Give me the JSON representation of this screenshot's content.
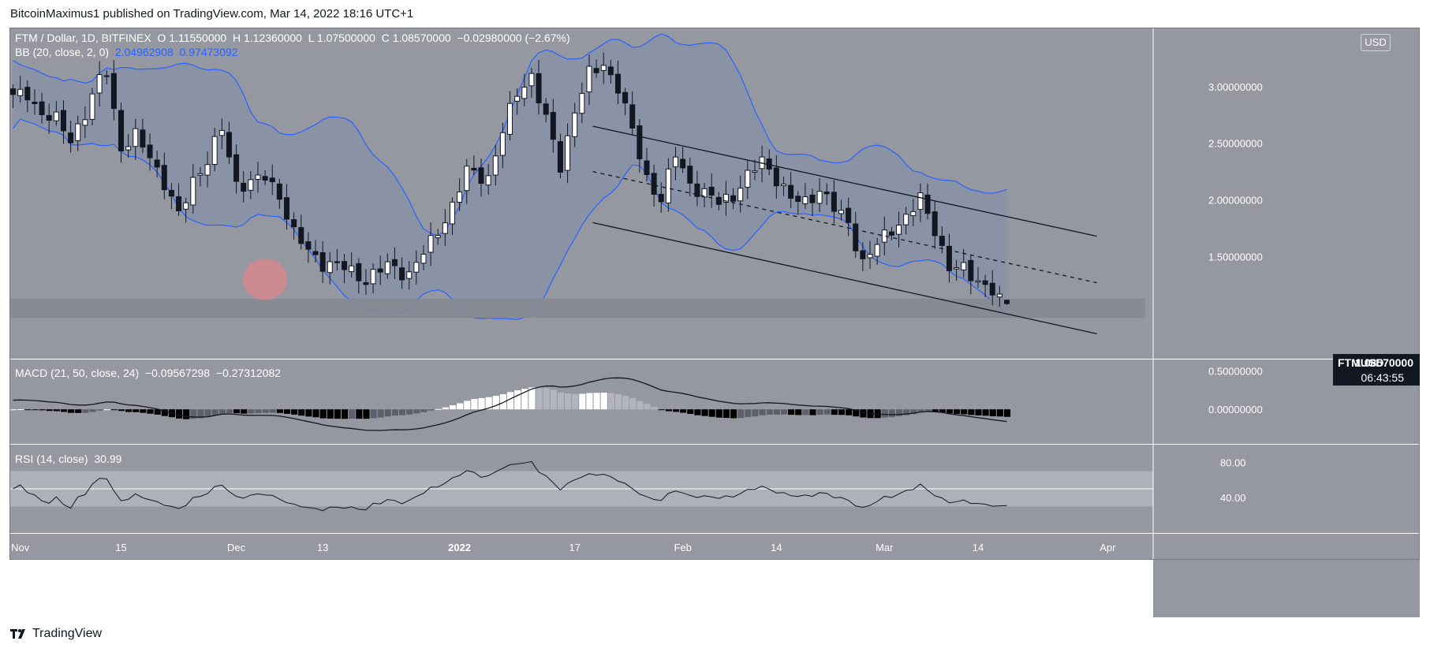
{
  "header": {
    "published": "BitcoinMaximus1 published on TradingView.com, Mar 14, 2022 18:16 UTC+1"
  },
  "legend": {
    "symbol": "FTM / Dollar, 1D, BITFINEX",
    "o_label": "O",
    "o": "1.11550000",
    "h_label": "H",
    "h": "1.12360000",
    "l_label": "L",
    "l": "1.07500000",
    "c_label": "C",
    "c": "1.08570000",
    "change": "−0.02980000 (−2.67%)",
    "bb_label": "BB (20, close, 2, 0)",
    "bb_upper": "2.04962908",
    "bb_lower": "0.97473092",
    "macd_label": "MACD (21, 50, close, 24)",
    "macd_v1": "−0.09567298",
    "macd_v2": "−0.27312082",
    "rsi_label": "RSI (14, close)",
    "rsi_v": "30.99"
  },
  "currency_badge": "USD",
  "price_tag": {
    "symbol": "FTMUSD",
    "price": "1.08570000",
    "countdown": "06:43:55"
  },
  "footer": {
    "brand": "TradingView"
  },
  "colors": {
    "pane_bg": "#9598a1",
    "band_fill": "#8592a6",
    "band_line": "#2962ff",
    "bull": "#ffffff",
    "bear": "#131722",
    "macd_line": "#131722",
    "hist_strong": "#000000",
    "hist_weak": "#5d606b",
    "hist_pos": "#ffffff",
    "rsi_band": "#b2b5be",
    "support": "#868993",
    "highlight": "#d08a8e"
  },
  "chart_data": {
    "type": "candlestick",
    "title": "FTM / Dollar, 1D, BITFINEX",
    "x_ticks": [
      "Nov",
      "15",
      "Dec",
      "13",
      "2022",
      "17",
      "Feb",
      "14",
      "Mar",
      "14",
      "Apr"
    ],
    "y_ticks": [
      "3.00000000",
      "2.50000000",
      "2.00000000",
      "1.50000000"
    ],
    "ylim": [
      0.6,
      3.52
    ],
    "x_range_days": [
      "2021-10-31",
      "2022-04-09"
    ],
    "close_anchors": [
      [
        0,
        2.9
      ],
      [
        2,
        2.95
      ],
      [
        4,
        2.75
      ],
      [
        6,
        2.7
      ],
      [
        8,
        2.55
      ],
      [
        10,
        2.75
      ],
      [
        12,
        3.05
      ],
      [
        13,
        3.15
      ],
      [
        15,
        2.45
      ],
      [
        17,
        2.55
      ],
      [
        19,
        2.4
      ],
      [
        21,
        2.15
      ],
      [
        23,
        1.85
      ],
      [
        25,
        2.18
      ],
      [
        27,
        2.35
      ],
      [
        29,
        2.62
      ],
      [
        31,
        2.15
      ],
      [
        33,
        2.15
      ],
      [
        35,
        2.2
      ],
      [
        37,
        2.05
      ],
      [
        39,
        1.7
      ],
      [
        41,
        1.55
      ],
      [
        43,
        1.45
      ],
      [
        46,
        1.4
      ],
      [
        49,
        1.3
      ],
      [
        52,
        1.42
      ],
      [
        55,
        1.35
      ],
      [
        58,
        1.62
      ],
      [
        61,
        1.95
      ],
      [
        63,
        2.25
      ],
      [
        66,
        2.2
      ],
      [
        68,
        2.6
      ],
      [
        70,
        2.95
      ],
      [
        72,
        3.1
      ],
      [
        74,
        2.7
      ],
      [
        76,
        2.3
      ],
      [
        78,
        2.8
      ],
      [
        80,
        3.1
      ],
      [
        82,
        3.2
      ],
      [
        84,
        3.0
      ],
      [
        86,
        2.6
      ],
      [
        88,
        2.2
      ],
      [
        90,
        2.0
      ],
      [
        92,
        2.4
      ],
      [
        94,
        2.15
      ],
      [
        96,
        2.05
      ],
      [
        98,
        1.98
      ],
      [
        100,
        2.05
      ],
      [
        102,
        2.2
      ],
      [
        104,
        2.35
      ],
      [
        106,
        2.2
      ],
      [
        108,
        2.0
      ],
      [
        110,
        1.98
      ],
      [
        112,
        2.1
      ],
      [
        114,
        1.92
      ],
      [
        116,
        1.8
      ],
      [
        118,
        1.45
      ],
      [
        120,
        1.6
      ],
      [
        122,
        1.75
      ],
      [
        124,
        1.85
      ],
      [
        126,
        2.0
      ],
      [
        128,
        1.75
      ],
      [
        130,
        1.4
      ],
      [
        132,
        1.38
      ],
      [
        134,
        1.3
      ],
      [
        136,
        1.2
      ],
      [
        137,
        1.1
      ],
      [
        138,
        1.0857
      ]
    ],
    "bollinger": {
      "period": 20,
      "mult": 2,
      "upper_last": 2.04962908,
      "lower_last": 0.97473092
    },
    "trendlines": [
      {
        "from": [
          "2022-01-20",
          2.65
        ],
        "to": [
          "2022-03-31",
          1.68
        ],
        "style": "solid"
      },
      {
        "from": [
          "2022-01-20",
          2.25
        ],
        "to": [
          "2022-03-31",
          1.27
        ],
        "style": "dashed"
      },
      {
        "from": [
          "2022-01-20",
          1.8
        ],
        "to": [
          "2022-03-31",
          0.82
        ],
        "style": "solid"
      }
    ],
    "support_zone": [
      0.96,
      1.13
    ],
    "highlight": {
      "date": "2021-12-05",
      "price": 1.3
    },
    "macd": {
      "params": "21, 50, close, 24",
      "y_ticks": [
        "0.50000000",
        "0.00000000"
      ],
      "ylim": [
        -0.45,
        0.65
      ]
    },
    "rsi": {
      "params": "14, close",
      "value": 30.99,
      "y_ticks": [
        "80.00",
        "40.00"
      ],
      "ylim": [
        0,
        100
      ],
      "band": [
        30,
        70
      ],
      "mid": 50
    }
  }
}
